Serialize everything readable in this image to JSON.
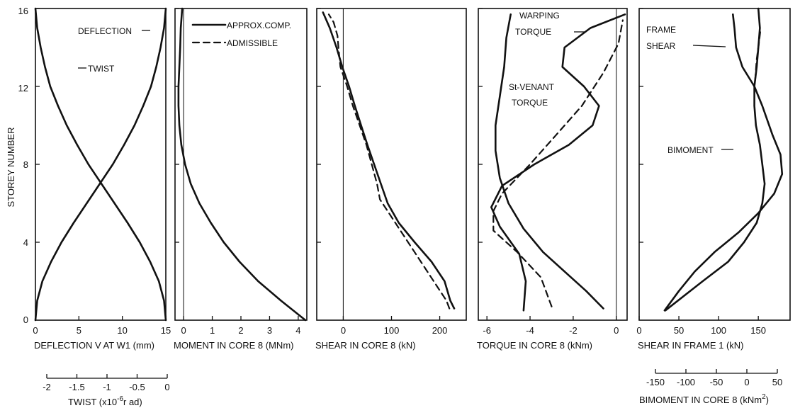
{
  "figure": {
    "ylabel": "STOREY NUMBER",
    "y_ticks": [
      "4",
      "8",
      "12",
      "16"
    ],
    "y_origin": "0",
    "legend": [
      {
        "label": "APPROX.COMP.",
        "style": "solid"
      },
      {
        "label": "ADMISSIBLE",
        "style": "dashed"
      }
    ]
  },
  "chart_data": [
    {
      "type": "line",
      "xlabel": "DEFLECTION V AT W1 (mm)",
      "xlim": [
        0,
        15
      ],
      "ylim": [
        0,
        16
      ],
      "x_ticks": [
        "0",
        "5",
        "10",
        "15"
      ],
      "annotations": [
        "DEFLECTION",
        "TWIST"
      ],
      "secondary_axis": {
        "label": "TWIST (x10-6 rad)",
        "label_parts": [
          "TWIST (x10",
          "-6",
          "r ad)"
        ],
        "range": [
          -2,
          0
        ],
        "ticks": [
          "-2",
          "-1.5",
          "-1",
          "-0.5",
          "0"
        ]
      },
      "series": [
        {
          "style": "solid",
          "points": [
            [
              0,
              0
            ],
            [
              0.2,
              1
            ],
            [
              0.8,
              2
            ],
            [
              1.8,
              3
            ],
            [
              3,
              4
            ],
            [
              4.4,
              5
            ],
            [
              5.9,
              6
            ],
            [
              7.4,
              7
            ],
            [
              8.9,
              8
            ],
            [
              10.2,
              9
            ],
            [
              11.4,
              10
            ],
            [
              12.4,
              11
            ],
            [
              13.3,
              12
            ],
            [
              13.9,
              13
            ],
            [
              14.4,
              14
            ],
            [
              14.8,
              15
            ],
            [
              15,
              16
            ]
          ]
        },
        {
          "style": "solid",
          "points": [
            [
              15,
              0
            ],
            [
              14.8,
              1
            ],
            [
              14.2,
              2
            ],
            [
              13.2,
              3
            ],
            [
              12,
              4
            ],
            [
              10.6,
              5
            ],
            [
              9.1,
              6
            ],
            [
              7.6,
              7
            ],
            [
              6.1,
              8
            ],
            [
              4.8,
              9
            ],
            [
              3.6,
              10
            ],
            [
              2.6,
              11
            ],
            [
              1.7,
              12
            ],
            [
              1.1,
              13
            ],
            [
              0.6,
              14
            ],
            [
              0.2,
              15
            ],
            [
              0,
              16
            ]
          ]
        }
      ]
    },
    {
      "type": "line",
      "xlabel": "MOMENT IN CORE 8 (MNm)",
      "xlim": [
        -0.3,
        4.3
      ],
      "ylim": [
        0,
        16
      ],
      "x_ticks": [
        "0",
        "1",
        "2",
        "3",
        "4"
      ],
      "series": [
        {
          "style": "solid",
          "points": [
            [
              4.25,
              0
            ],
            [
              3.4,
              1
            ],
            [
              2.6,
              2
            ],
            [
              1.95,
              3
            ],
            [
              1.4,
              4
            ],
            [
              0.95,
              5
            ],
            [
              0.55,
              6
            ],
            [
              0.25,
              7
            ],
            [
              0.05,
              8
            ],
            [
              -0.08,
              9
            ],
            [
              -0.15,
              10
            ],
            [
              -0.18,
              11
            ],
            [
              -0.18,
              12
            ],
            [
              -0.15,
              13
            ],
            [
              -0.12,
              14
            ],
            [
              -0.1,
              15
            ],
            [
              -0.05,
              16
            ]
          ]
        }
      ]
    },
    {
      "type": "line",
      "xlabel": "SHEAR IN CORE 8 (kN)",
      "xlim": [
        -55,
        255
      ],
      "ylim": [
        0,
        16
      ],
      "x_ticks": [
        "0",
        "100",
        "200"
      ],
      "series": [
        {
          "name": "APPROX.COMP.",
          "style": "solid",
          "points": [
            [
              230,
              0.6
            ],
            [
              222,
              1
            ],
            [
              210,
              2
            ],
            [
              183,
              3
            ],
            [
              148,
              4
            ],
            [
              115,
              5
            ],
            [
              92,
              6
            ],
            [
              78,
              7
            ],
            [
              64,
              8
            ],
            [
              50,
              9
            ],
            [
              37,
              10
            ],
            [
              24,
              11
            ],
            [
              12,
              12
            ],
            [
              -2,
              13
            ],
            [
              -14,
              14
            ],
            [
              -28,
              15
            ],
            [
              -42,
              15.8
            ]
          ]
        },
        {
          "name": "ADMISSIBLE",
          "style": "dashed",
          "points": [
            [
              220,
              0.6
            ],
            [
              214,
              1
            ],
            [
              76,
              6.2
            ],
            [
              70,
              7
            ],
            [
              58,
              8.1
            ],
            [
              48,
              9
            ],
            [
              34,
              10
            ],
            [
              20,
              11
            ],
            [
              8,
              12
            ],
            [
              -6,
              13
            ],
            [
              -10,
              14
            ],
            [
              -12,
              14.6
            ],
            [
              -20,
              15.3
            ],
            [
              -30,
              15.7
            ]
          ]
        }
      ]
    },
    {
      "type": "line",
      "xlabel": "TORQUE IN CORE 8 (kNm)",
      "xlim": [
        -6.4,
        0.5
      ],
      "ylim": [
        0,
        16
      ],
      "x_ticks": [
        "-6",
        "-4",
        "-2",
        "0"
      ],
      "annotations": [
        "WARPING",
        "TORQUE",
        "St-VENANT",
        "TORQUE"
      ],
      "series": [
        {
          "name": "APPROX.COMP.",
          "style": "solid",
          "points": [
            [
              -4.3,
              0.5
            ],
            [
              -4.2,
              2
            ],
            [
              -4.5,
              3.4
            ],
            [
              -5.4,
              4.8
            ],
            [
              -5.8,
              5.8
            ],
            [
              -5.3,
              6.9
            ],
            [
              -3.8,
              8
            ],
            [
              -2.2,
              9
            ],
            [
              -1.1,
              10
            ],
            [
              -0.8,
              11
            ],
            [
              -1.5,
              12
            ],
            [
              -2.5,
              13
            ],
            [
              -2.4,
              14
            ],
            [
              -1.2,
              15
            ],
            [
              0.4,
              15.7
            ]
          ]
        },
        {
          "name": "ADMISSIBLE",
          "style": "dashed",
          "points": [
            [
              -3,
              0.7
            ],
            [
              -3.5,
              2.2
            ],
            [
              -4.6,
              3.5
            ],
            [
              -5.7,
              4.6
            ],
            [
              -5.7,
              5.6
            ],
            [
              -5.3,
              6.5
            ],
            [
              -4,
              8
            ],
            [
              -2.8,
              9.5
            ],
            [
              -1.6,
              11
            ],
            [
              -0.6,
              12.7
            ],
            [
              0.1,
              14.2
            ],
            [
              0.3,
              15.4
            ]
          ]
        },
        {
          "name": "WARPING TORQUE",
          "style": "solid",
          "points": [
            [
              -0.6,
              0.6
            ],
            [
              -1.4,
              1.5
            ],
            [
              -2.4,
              2.5
            ],
            [
              -3.4,
              3.5
            ],
            [
              -4.3,
              4.7
            ],
            [
              -5,
              6
            ],
            [
              -5.4,
              7.3
            ],
            [
              -5.6,
              8.7
            ],
            [
              -5.6,
              10
            ],
            [
              -5.4,
              11.5
            ],
            [
              -5.2,
              13
            ],
            [
              -5.1,
              14.5
            ],
            [
              -4.9,
              15.7
            ]
          ]
        }
      ]
    },
    {
      "type": "line",
      "xlabel": "SHEAR IN FRAME 1 (kN)",
      "xlim": [
        0,
        190
      ],
      "ylim": [
        0,
        16
      ],
      "x_ticks": [
        "0",
        "50",
        "100",
        "150"
      ],
      "annotations": [
        "FRAME",
        "SHEAR",
        "BIMOMENT"
      ],
      "secondary_axis": {
        "label": "BIMOMENT IN CORE 8 (kNm2)",
        "label_parts": [
          "BIMOMENT IN CORE 8 (kNm",
          "2",
          ")"
        ],
        "range": [
          -150,
          50
        ],
        "ticks": [
          "-150",
          "-100",
          "-50",
          "0",
          "50"
        ]
      },
      "series": [
        {
          "name": "FRAME SHEAR",
          "style": "solid",
          "points": [
            [
              32,
              0.5
            ],
            [
              50,
              1.5
            ],
            [
              70,
              2.5
            ],
            [
              95,
              3.5
            ],
            [
              125,
              4.5
            ],
            [
              150,
              5.5
            ],
            [
              170,
              6.5
            ],
            [
              180,
              7.5
            ],
            [
              178,
              8.5
            ],
            [
              168,
              9.5
            ],
            [
              155,
              11
            ],
            [
              145,
              12
            ],
            [
              130,
              13
            ],
            [
              122,
              14
            ],
            [
              120,
              15
            ],
            [
              118,
              15.7
            ]
          ]
        },
        {
          "name": "BIMOMENT",
          "style": "solid",
          "points": [
            [
              33,
              0.5
            ],
            [
              80,
              2
            ],
            [
              112,
              3
            ],
            [
              132,
              4
            ],
            [
              148,
              5
            ],
            [
              155,
              6
            ],
            [
              158,
              7
            ],
            [
              155,
              8
            ],
            [
              152,
              9
            ],
            [
              147,
              10
            ],
            [
              145,
              11
            ],
            [
              145,
              12
            ],
            [
              148,
              13
            ],
            [
              150,
              14
            ],
            [
              152,
              15
            ],
            [
              150,
              16
            ]
          ]
        },
        {
          "name": "ADMISSIBLE",
          "style": "dashed",
          "points": [
            [
              146,
              12.3
            ],
            [
              148,
              13.4
            ],
            [
              151,
              14.3
            ],
            [
              153,
              15
            ]
          ]
        }
      ]
    }
  ]
}
